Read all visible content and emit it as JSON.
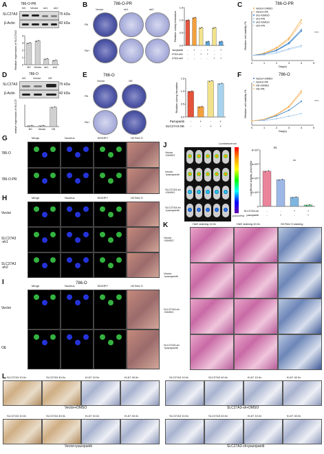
{
  "panels": {
    "A": {
      "label": "A",
      "title": "786-O-PR",
      "lanes": [
        "NC",
        "Vector",
        "sh1",
        "sh2"
      ],
      "bands": [
        {
          "name": "SLC27A3",
          "kda": "75 kDa"
        },
        {
          "name": "β-Actin",
          "kda": "42 kDa"
        }
      ],
      "ylabel": "Relative expression of SLC27A3",
      "ticks": [
        "0",
        "1",
        "2",
        "3",
        "4"
      ],
      "xcats": [
        "NC",
        "Vector",
        "sh1",
        "sh2"
      ]
    },
    "B": {
      "label": "B",
      "title": "786-O-PR",
      "cols": [
        "Vector",
        "sh1",
        "sh2"
      ],
      "rows": [
        "PA",
        "PA+"
      ],
      "ylabel": "Relative colony formation",
      "ticks": [
        "0.0",
        "0.5",
        "1.0",
        "1.5"
      ],
      "rowlabels": [
        "Pazopanib",
        "SLC27A3-sh1",
        "SLC27A3-sh2"
      ],
      "signs": [
        [
          "-",
          "+",
          "-",
          "+",
          "-",
          "+"
        ],
        [
          "-",
          "-",
          "+",
          "+",
          "-",
          "-"
        ],
        [
          "-",
          "-",
          "-",
          "-",
          "+",
          "+"
        ]
      ]
    },
    "C": {
      "label": "C",
      "title": "786-O-PR",
      "ylabel": "Relative cell viability /%",
      "xlabel": "Day(s)",
      "legend": [
        "Vector+DMSO",
        "Vector+PA",
        "sh1+DMSO",
        "sh1+PA",
        "sh2+DMSO",
        "sh2+PA"
      ],
      "stars": "****"
    },
    "D": {
      "label": "D",
      "title": "786-O",
      "lanes": [
        "NC",
        "Vector",
        "OE"
      ],
      "bands": [
        {
          "name": "SLC27A3",
          "kda": "75 kDa"
        },
        {
          "name": "β-Actin",
          "kda": "42 kDa"
        }
      ],
      "ylabel": "Relative expression of SLC27A3",
      "xcats": [
        "NC",
        "Vector",
        "OE"
      ]
    },
    "E": {
      "label": "E",
      "title": "786-O",
      "cols": [
        "Vector",
        "OE"
      ],
      "rows": [
        "PA",
        "PA+"
      ],
      "ylabel": "Relative colony formation",
      "ticks": [
        "0.0",
        "0.5",
        "1.0",
        "1.5"
      ],
      "rowlabels": [
        "Pazopanib",
        "SLC27A3-OE"
      ],
      "signs": [
        [
          "-",
          "+",
          "-",
          "+"
        ],
        [
          "-",
          "-",
          "+",
          "+"
        ]
      ]
    },
    "F": {
      "label": "F",
      "title": "786-O",
      "ylabel": "Relative cell viability /%",
      "xlabel": "Day(s)",
      "legend": [
        "Vector+DMSO",
        "Vector+PA",
        "OE+DMSO",
        "OE+PA"
      ],
      "stars": "****"
    },
    "G": {
      "label": "G",
      "cols": [
        "Merge",
        "Nucleus",
        "BODIPY",
        "Oil Red O"
      ],
      "rows": [
        "786-O",
        "786-O-PR"
      ]
    },
    "H": {
      "label": "H",
      "cols": [
        "Merge",
        "Nucleus",
        "BODIPY",
        "Oil Red O"
      ],
      "rows": [
        "Vector",
        "SLC27A3\n-sh1",
        "SLC27A3\n-sh2"
      ]
    },
    "I": {
      "label": "I",
      "title": "786-O",
      "cols": [
        "Merge",
        "Nucleus",
        "BODIPY",
        "Oil Red O"
      ],
      "rows": [
        "Vector",
        "OE"
      ]
    },
    "J": {
      "label": "J",
      "rows": [
        "Vector\n+DMSO",
        "Vector\n+pazopanib",
        "SLC27A3-sh\n+DMSO",
        "SLC27A3-sh\n+pazopanib"
      ],
      "colorbar": "Luminescence",
      "unit": "p/s/cm²/sr",
      "ylabel": "Luciferase activity, p/s/cm²/sr",
      "ticks": [
        "0",
        "2×10⁸",
        "4×10⁸",
        "6×10⁸",
        "8×10⁸"
      ],
      "rowlabels": [
        "SLC27A3-sh",
        "pazopanib"
      ],
      "signs": [
        [
          "-",
          "-",
          "+",
          "+"
        ],
        [
          "-",
          "+",
          "-",
          "+"
        ]
      ],
      "ns": "ns",
      "stars": "**"
    },
    "K": {
      "label": "K",
      "cols": [
        "H&E staining 10.0x",
        "H&E staining 40.0x",
        "Oil Red O staining"
      ],
      "rows": [
        "Vector\n+DMSO",
        "Vector\n+pazopanib",
        "SLC27A3-sh\n+DMSO",
        "SLC27A3-sh\n+pazopanib"
      ]
    },
    "L": {
      "label": "L",
      "cols": [
        "SLC27A3 10.0x",
        "SLC27A3 40.0x",
        "Ki-67 10.0x",
        "Ki-67 40.0x"
      ],
      "groups": [
        "Vector+DMSO",
        "SLC27A3-sh+DMSO",
        "Vector+pazopanib",
        "SLC27A3-sh+pazopanib"
      ]
    }
  },
  "chart_data": [
    {
      "type": "bar",
      "panel": "A",
      "categories": [
        "NC",
        "Vector",
        "sh1",
        "sh2"
      ],
      "values": [
        3.0,
        3.3,
        0.8,
        0.6
      ],
      "ylim": [
        0,
        4
      ]
    },
    {
      "type": "bar",
      "panel": "B",
      "categories": [
        "1",
        "2",
        "3",
        "4",
        "5",
        "6"
      ],
      "values": [
        1.0,
        1.1,
        0.7,
        0.15,
        0.7,
        0.15
      ],
      "ylim": [
        0,
        1.5
      ]
    },
    {
      "type": "line",
      "panel": "C",
      "x": [
        0,
        1,
        2,
        3,
        4
      ],
      "series": [
        {
          "name": "Vector+DMSO",
          "values": [
            1,
            1.5,
            2.6,
            4.5,
            8.2
          ]
        },
        {
          "name": "Vector+PA",
          "values": [
            1,
            1.4,
            2.4,
            4.2,
            7.6
          ]
        },
        {
          "name": "sh1+DMSO",
          "values": [
            1,
            1.3,
            2.1,
            3.6,
            6.2
          ]
        },
        {
          "name": "sh1+PA",
          "values": [
            1,
            1.1,
            1.6,
            2.4,
            3.0
          ]
        },
        {
          "name": "sh2+DMSO",
          "values": [
            1,
            1.3,
            2.0,
            3.4,
            5.9
          ]
        },
        {
          "name": "sh2+PA",
          "values": [
            1,
            1.1,
            1.5,
            2.2,
            2.8
          ]
        }
      ],
      "ylim": [
        0,
        10
      ]
    },
    {
      "type": "bar",
      "panel": "D",
      "categories": [
        "NC",
        "Vector",
        "OE"
      ],
      "values": [
        1,
        1,
        22
      ],
      "ylim": [
        0,
        25
      ]
    },
    {
      "type": "bar",
      "panel": "E",
      "categories": [
        "1",
        "2",
        "3",
        "4"
      ],
      "values": [
        1.0,
        0.4,
        1.4,
        1.3
      ],
      "ylim": [
        0,
        1.5
      ]
    },
    {
      "type": "line",
      "panel": "F",
      "x": [
        0,
        1,
        2,
        3,
        4
      ],
      "series": [
        {
          "name": "Vector+DMSO",
          "values": [
            1,
            1.3,
            2.2,
            3.5,
            5.6
          ]
        },
        {
          "name": "Vector+PA",
          "values": [
            1,
            1.1,
            1.5,
            2.1,
            2.7
          ]
        },
        {
          "name": "OE+DMSO",
          "values": [
            1,
            1.4,
            2.5,
            4.4,
            8.0
          ]
        },
        {
          "name": "OE+PA",
          "values": [
            1,
            1.4,
            2.4,
            4.2,
            7.5
          ]
        }
      ],
      "ylim": [
        0,
        10
      ]
    },
    {
      "type": "bar",
      "panel": "J",
      "categories": [
        "1",
        "2",
        "3",
        "4"
      ],
      "values": [
        500000000.0,
        380000000.0,
        130000000.0,
        20000000.0
      ],
      "ylim": [
        0,
        800000000.0
      ]
    }
  ],
  "colors": {
    "orange": "#f4a03c",
    "blue": "#5aa7e0",
    "yellow": "#f2e28c",
    "lightblue": "#a7d3ee",
    "red": "#e4533a",
    "green": "#2fa24a"
  }
}
